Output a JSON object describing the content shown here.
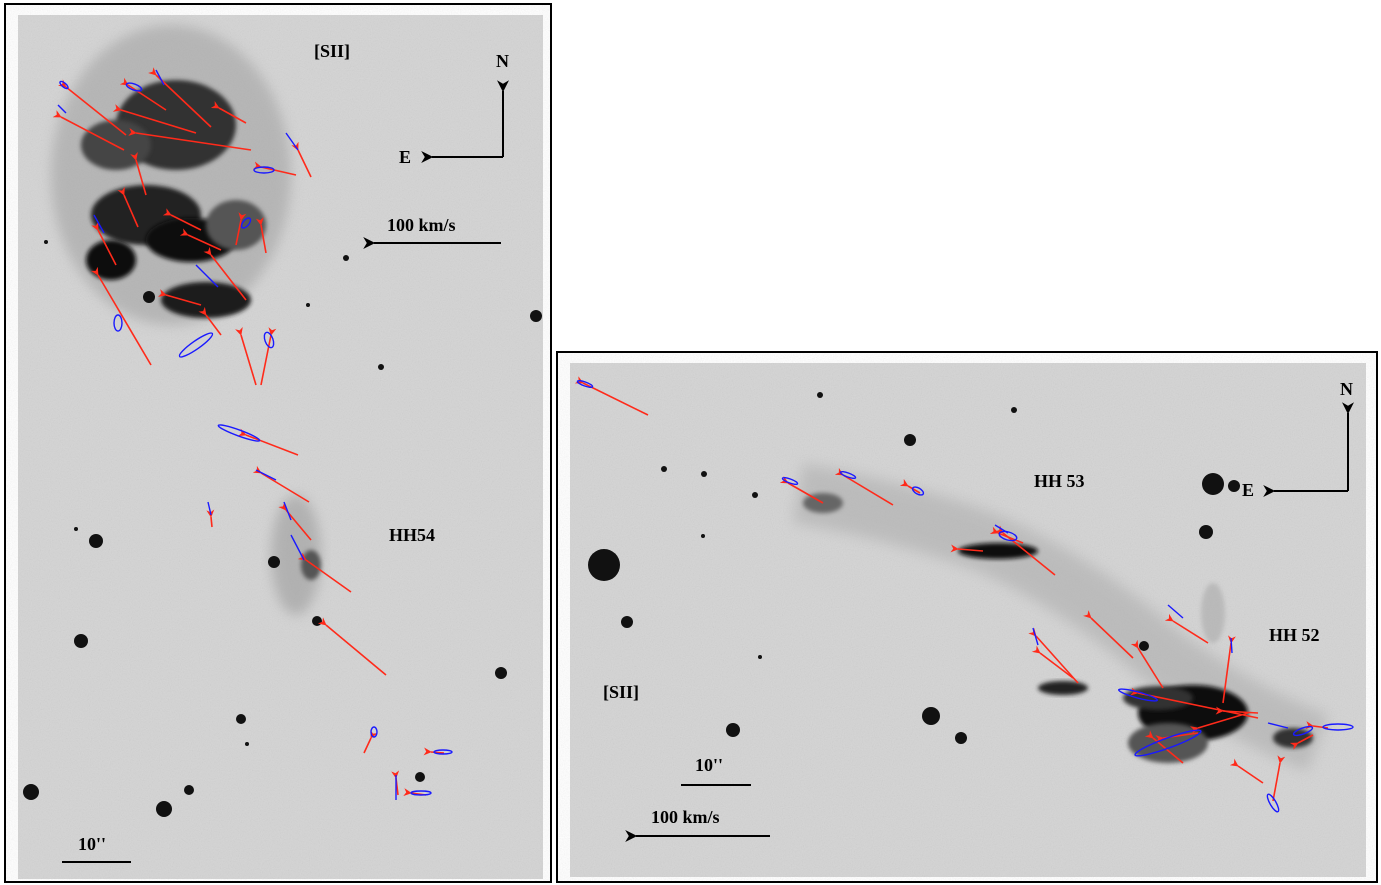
{
  "figure": {
    "colors": {
      "proper_motion_vector": "#ff2a1a",
      "error_ellipse": "#1a1aff",
      "background": "#d2d2d2",
      "emission": "#111111"
    },
    "left_panel": {
      "filter_label": "[SII]",
      "object_label": "HH54",
      "compass": {
        "north": "N",
        "east": "E"
      },
      "velocity_scale_label": "100 km/s",
      "angular_scale_label": "10''"
    },
    "right_panel": {
      "filter_label": "[SII]",
      "object_labels": [
        "HH 53",
        "HH 52"
      ],
      "compass": {
        "north": "N",
        "east": "E"
      },
      "velocity_scale_label": "100 km/s",
      "angular_scale_label": "10''"
    }
  }
}
